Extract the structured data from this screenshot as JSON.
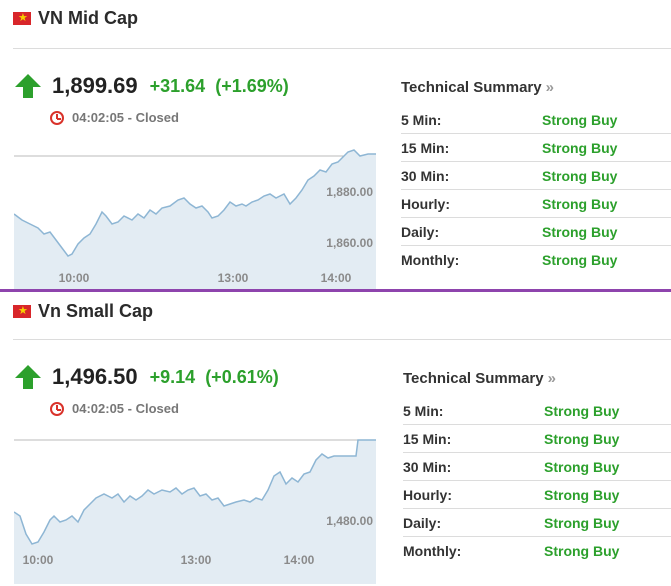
{
  "indices": [
    {
      "name": "VN Mid Cap",
      "last": "1,899.69",
      "change": "+31.64",
      "change_pct": "(+1.69%)",
      "time": "04:02:05",
      "status": "Closed",
      "chart": {
        "y_ticks": [
          "1,880.00",
          "1,860.00"
        ],
        "x_ticks": [
          "10:00",
          "13:00",
          "14:00"
        ],
        "line_color": "#8eb6d4",
        "fill_color": "#e3ecf3"
      },
      "summary_title": "Technical Summary",
      "summary": [
        {
          "period": "5 Min:",
          "signal": "Strong Buy"
        },
        {
          "period": "15 Min:",
          "signal": "Strong Buy"
        },
        {
          "period": "30 Min:",
          "signal": "Strong Buy"
        },
        {
          "period": "Hourly:",
          "signal": "Strong Buy"
        },
        {
          "period": "Daily:",
          "signal": "Strong Buy"
        },
        {
          "period": "Monthly:",
          "signal": "Strong Buy"
        }
      ]
    },
    {
      "name": "Vn Small Cap",
      "last": "1,496.50",
      "change": "+9.14",
      "change_pct": "(+0.61%)",
      "time": "04:02:05",
      "status": "Closed",
      "chart": {
        "y_ticks": [
          "1,480.00"
        ],
        "x_ticks": [
          "10:00",
          "13:00",
          "14:00"
        ],
        "line_color": "#8eb6d4",
        "fill_color": "#e3ecf3"
      },
      "summary_title": "Technical Summary",
      "summary": [
        {
          "period": "5 Min:",
          "signal": "Strong Buy"
        },
        {
          "period": "15 Min:",
          "signal": "Strong Buy"
        },
        {
          "period": "30 Min:",
          "signal": "Strong Buy"
        },
        {
          "period": "Hourly:",
          "signal": "Strong Buy"
        },
        {
          "period": "Daily:",
          "signal": "Strong Buy"
        },
        {
          "period": "Monthly:",
          "signal": "Strong Buy"
        }
      ]
    }
  ],
  "colors": {
    "up": "#2ca02c",
    "accent_divider": "#8e44ad",
    "clock": "#d9322a"
  },
  "icons": {
    "flag": "vietnam-flag-icon",
    "arrow": "arrow-up-icon",
    "clock": "clock-icon"
  }
}
